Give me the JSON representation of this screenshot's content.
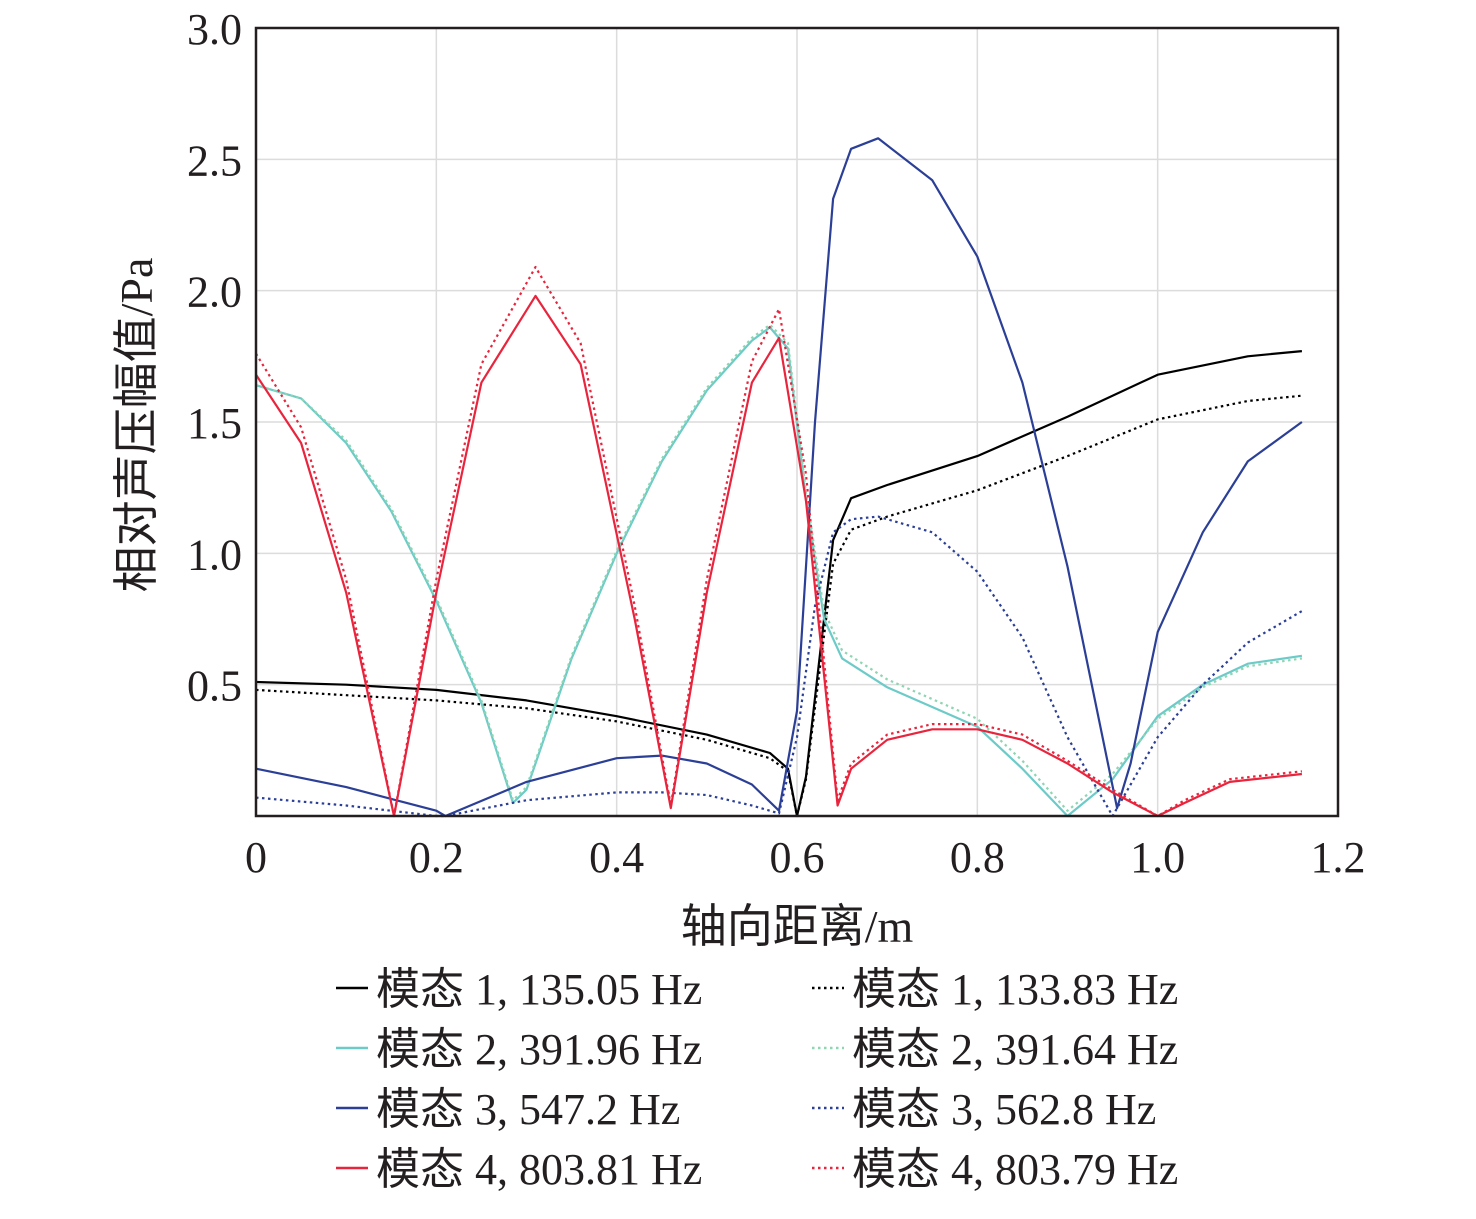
{
  "chart_data": {
    "type": "line",
    "xlabel": "轴向距离/m",
    "ylabel": "相对声压幅值/Pa",
    "xlim": [
      0,
      1.2
    ],
    "ylim": [
      0,
      3.0
    ],
    "xticks": [
      {
        "value": 0,
        "label": "0"
      },
      {
        "value": 0.2,
        "label": "0.2"
      },
      {
        "value": 0.4,
        "label": "0.4"
      },
      {
        "value": 0.6,
        "label": "0.6"
      },
      {
        "value": 0.8,
        "label": "0.8"
      },
      {
        "value": 1.0,
        "label": "1.0"
      },
      {
        "value": 1.2,
        "label": "1.2"
      }
    ],
    "yticks": [
      {
        "value": 0.5,
        "label": "0.5"
      },
      {
        "value": 1.0,
        "label": "1.0"
      },
      {
        "value": 1.5,
        "label": "1.5"
      },
      {
        "value": 2.0,
        "label": "2.0"
      },
      {
        "value": 2.5,
        "label": "2.5"
      },
      {
        "value": 3.0,
        "label": "3.0"
      }
    ],
    "grid": true,
    "legend_position": "bottom",
    "series": [
      {
        "name": "模态 1, 135.05 Hz",
        "color": "#000000",
        "style": "solid",
        "x": [
          0.0,
          0.1,
          0.2,
          0.3,
          0.4,
          0.5,
          0.57,
          0.59,
          0.6,
          0.61,
          0.625,
          0.64,
          0.66,
          0.7,
          0.8,
          0.9,
          1.0,
          1.1,
          1.16
        ],
        "y": [
          0.51,
          0.5,
          0.48,
          0.44,
          0.38,
          0.31,
          0.24,
          0.18,
          0.0,
          0.15,
          0.6,
          1.05,
          1.21,
          1.26,
          1.37,
          1.52,
          1.68,
          1.75,
          1.77
        ]
      },
      {
        "name": "模态 1, 133.83 Hz",
        "color": "#000000",
        "style": "dotted",
        "x": [
          0.0,
          0.1,
          0.2,
          0.3,
          0.4,
          0.5,
          0.57,
          0.59,
          0.6,
          0.61,
          0.625,
          0.64,
          0.66,
          0.7,
          0.8,
          0.9,
          1.0,
          1.1,
          1.16
        ],
        "y": [
          0.48,
          0.46,
          0.44,
          0.41,
          0.36,
          0.29,
          0.22,
          0.17,
          0.0,
          0.14,
          0.55,
          0.96,
          1.09,
          1.14,
          1.24,
          1.37,
          1.51,
          1.58,
          1.6
        ]
      },
      {
        "name": "模态 2, 391.96 Hz",
        "color": "#6ccbc8",
        "style": "solid",
        "x": [
          0.0,
          0.05,
          0.1,
          0.15,
          0.2,
          0.25,
          0.285,
          0.3,
          0.35,
          0.4,
          0.45,
          0.5,
          0.55,
          0.57,
          0.59,
          0.61,
          0.63,
          0.65,
          0.7,
          0.8,
          0.85,
          0.9,
          0.95,
          1.0,
          1.05,
          1.1,
          1.16
        ],
        "y": [
          1.64,
          1.59,
          1.42,
          1.16,
          0.82,
          0.43,
          0.05,
          0.1,
          0.6,
          1.0,
          1.35,
          1.62,
          1.81,
          1.86,
          1.78,
          1.2,
          0.75,
          0.6,
          0.49,
          0.34,
          0.18,
          0.0,
          0.14,
          0.38,
          0.5,
          0.58,
          0.61
        ]
      },
      {
        "name": "模态 2, 391.64 Hz",
        "color": "#8ed5b2",
        "style": "dotted",
        "x": [
          0.0,
          0.05,
          0.1,
          0.15,
          0.2,
          0.25,
          0.285,
          0.3,
          0.35,
          0.4,
          0.45,
          0.5,
          0.55,
          0.57,
          0.59,
          0.61,
          0.63,
          0.65,
          0.7,
          0.8,
          0.85,
          0.9,
          0.95,
          1.0,
          1.05,
          1.1,
          1.16
        ],
        "y": [
          1.64,
          1.59,
          1.43,
          1.17,
          0.83,
          0.44,
          0.06,
          0.11,
          0.61,
          1.01,
          1.36,
          1.63,
          1.82,
          1.87,
          1.8,
          1.23,
          0.78,
          0.63,
          0.52,
          0.37,
          0.21,
          0.02,
          0.16,
          0.37,
          0.49,
          0.57,
          0.6
        ]
      },
      {
        "name": "模态 3, 547.2 Hz",
        "color": "#2b3f97",
        "style": "solid",
        "x": [
          0.0,
          0.1,
          0.2,
          0.21,
          0.3,
          0.4,
          0.45,
          0.5,
          0.55,
          0.58,
          0.6,
          0.62,
          0.64,
          0.66,
          0.69,
          0.75,
          0.8,
          0.85,
          0.9,
          0.955,
          0.97,
          1.0,
          1.05,
          1.1,
          1.16
        ],
        "y": [
          0.18,
          0.11,
          0.02,
          0.0,
          0.13,
          0.22,
          0.23,
          0.2,
          0.12,
          0.02,
          0.4,
          1.5,
          2.35,
          2.54,
          2.58,
          2.42,
          2.13,
          1.65,
          0.95,
          0.03,
          0.2,
          0.7,
          1.08,
          1.35,
          1.5
        ]
      },
      {
        "name": "模态 3, 562.8 Hz",
        "color": "#2b3f97",
        "style": "dotted",
        "x": [
          0.0,
          0.1,
          0.2,
          0.21,
          0.3,
          0.4,
          0.45,
          0.5,
          0.55,
          0.58,
          0.6,
          0.62,
          0.64,
          0.66,
          0.69,
          0.75,
          0.8,
          0.85,
          0.9,
          0.95,
          1.0,
          1.05,
          1.1,
          1.16
        ],
        "y": [
          0.07,
          0.04,
          0.0,
          0.0,
          0.06,
          0.09,
          0.09,
          0.08,
          0.04,
          0.01,
          0.3,
          0.8,
          1.08,
          1.13,
          1.14,
          1.08,
          0.93,
          0.68,
          0.3,
          0.0,
          0.3,
          0.5,
          0.66,
          0.78
        ]
      },
      {
        "name": "模态 4, 803.81 Hz",
        "color": "#e8253d",
        "style": "solid",
        "x": [
          0.0,
          0.05,
          0.1,
          0.153,
          0.2,
          0.25,
          0.31,
          0.36,
          0.42,
          0.46,
          0.5,
          0.55,
          0.58,
          0.61,
          0.645,
          0.66,
          0.7,
          0.75,
          0.8,
          0.85,
          0.9,
          0.95,
          1.0,
          1.03,
          1.08,
          1.16
        ],
        "y": [
          1.68,
          1.42,
          0.85,
          0.0,
          0.85,
          1.65,
          1.98,
          1.72,
          0.75,
          0.03,
          0.85,
          1.65,
          1.82,
          1.2,
          0.04,
          0.18,
          0.29,
          0.33,
          0.33,
          0.29,
          0.2,
          0.09,
          0.0,
          0.05,
          0.13,
          0.16
        ]
      },
      {
        "name": "模态 4, 803.79 Hz",
        "color": "#e8253d",
        "style": "dotted",
        "x": [
          0.0,
          0.05,
          0.1,
          0.153,
          0.2,
          0.25,
          0.31,
          0.36,
          0.42,
          0.46,
          0.5,
          0.55,
          0.58,
          0.61,
          0.645,
          0.66,
          0.7,
          0.75,
          0.8,
          0.85,
          0.9,
          0.95,
          1.0,
          1.03,
          1.08,
          1.16
        ],
        "y": [
          1.76,
          1.48,
          0.9,
          0.0,
          0.9,
          1.72,
          2.09,
          1.8,
          0.8,
          0.04,
          0.9,
          1.73,
          1.93,
          1.3,
          0.06,
          0.2,
          0.31,
          0.35,
          0.35,
          0.31,
          0.21,
          0.1,
          0.0,
          0.06,
          0.14,
          0.17
        ]
      }
    ]
  }
}
